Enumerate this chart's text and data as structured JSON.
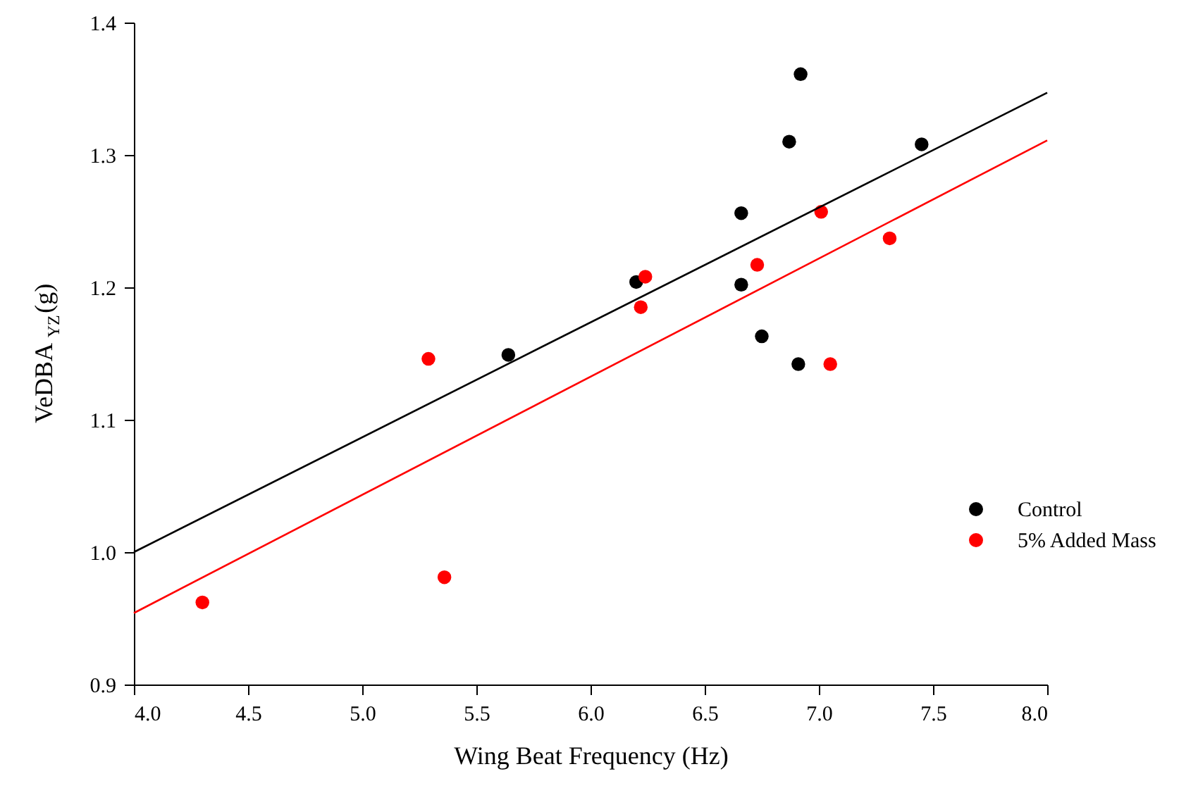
{
  "chart_data": {
    "type": "scatter",
    "xlabel": "Wing Beat Frequency (Hz)",
    "ylabel": "VeDBA$_{YZ}$(g)",
    "xlim": [
      4.0,
      8.0
    ],
    "xticks": [
      {
        "value": 4,
        "label": "4.0"
      },
      4.5,
      {
        "value": 5,
        "label": "5.0"
      },
      5.5,
      {
        "value": 6,
        "label": "6.0"
      },
      6.5,
      {
        "value": 7,
        "label": "7.0"
      },
      7.5,
      {
        "value": 8,
        "label": "8.0"
      }
    ],
    "ylim": [
      0.9,
      1.4
    ],
    "yticks": [
      0.9,
      {
        "value": 1,
        "label": "1.0"
      },
      1.1,
      1.2,
      1.3,
      1.4
    ],
    "grid": false,
    "legend": "right",
    "series": [
      {
        "name": "Control",
        "color": "#000000",
        "marker": "circle",
        "x": [
          5.64,
          6.2,
          6.66,
          6.66,
          6.75,
          6.87,
          6.91,
          6.92,
          7.45
        ],
        "values": [
          1.149,
          1.204,
          1.256,
          1.202,
          1.163,
          1.31,
          1.142,
          1.361,
          1.308
        ]
      },
      {
        "name": "5% Added Mass",
        "color": "#ff0000",
        "marker": "circle",
        "x": [
          4.3,
          5.29,
          5.36,
          6.22,
          6.24,
          6.73,
          7.01,
          7.05,
          7.31
        ],
        "values": [
          0.962,
          1.146,
          0.981,
          1.185,
          1.208,
          1.217,
          1.257,
          1.142,
          1.237
        ]
      },
      {
        "type": "line",
        "color": "#000000",
        "x": [
          4.0,
          8.0
        ],
        "values": [
          1.0,
          1.347
        ]
      },
      {
        "type": "line",
        "color": "#ff0000",
        "x": [
          4.0,
          8.0
        ],
        "values": [
          0.954,
          1.311
        ]
      }
    ]
  }
}
